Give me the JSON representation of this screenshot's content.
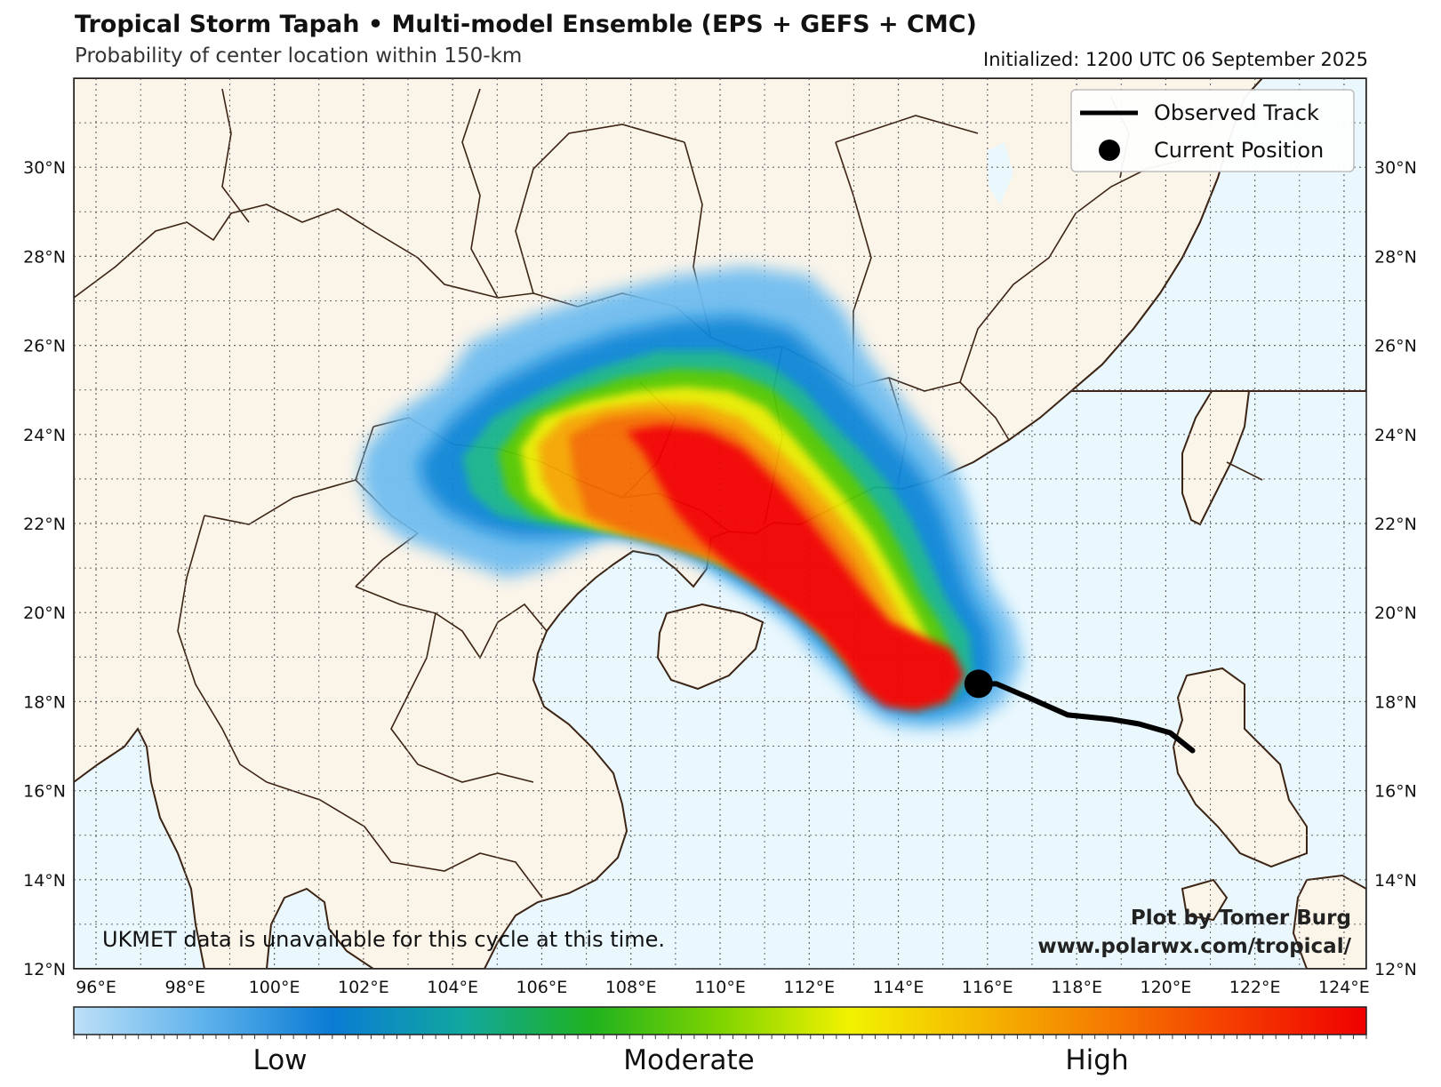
{
  "header": {
    "title": "Tropical Storm Tapah • Multi-model Ensemble (EPS + GEFS + CMC)",
    "subtitle": "Probability of center location within 150-km",
    "initialized": "Initialized: 1200 UTC 06 September 2025"
  },
  "map": {
    "lon_range": [
      95.5,
      124.5
    ],
    "lat_range": [
      12,
      32
    ],
    "lon_ticks": [
      "96°E",
      "98°E",
      "100°E",
      "102°E",
      "104°E",
      "106°E",
      "108°E",
      "110°E",
      "112°E",
      "114°E",
      "116°E",
      "118°E",
      "120°E",
      "122°E",
      "124°E"
    ],
    "lat_ticks": [
      "12°N",
      "14°N",
      "16°N",
      "18°N",
      "20°N",
      "22°N",
      "24°N",
      "26°N",
      "28°N",
      "30°N"
    ],
    "colors": {
      "land": "#fbf4e9",
      "ocean": "#eaf8fd",
      "border": "#3b2414",
      "grid": "#555555",
      "track": "#000000"
    }
  },
  "legend": {
    "observed_track": "Observed Track",
    "current_position": "Current Position"
  },
  "observed_track": [
    [
      120.6,
      16.9
    ],
    [
      120.1,
      17.3
    ],
    [
      119.4,
      17.5
    ],
    [
      118.8,
      17.6
    ],
    [
      117.8,
      17.7
    ],
    [
      116.9,
      18.1
    ],
    [
      116.2,
      18.4
    ],
    [
      115.8,
      18.4
    ]
  ],
  "current_position": [
    115.8,
    18.4
  ],
  "note": "UKMET data is unavailable for this cycle at this time.",
  "credit": {
    "line1": "Plot by Tomer Burg",
    "line2": "www.polarwx.com/tropical/"
  },
  "colorbar": {
    "labels": [
      "Low",
      "Moderate",
      "High"
    ],
    "colors": [
      "#bde0f7",
      "#5fb2ec",
      "#0a7bd4",
      "#11a7a0",
      "#1fb21f",
      "#7fd400",
      "#f2f200",
      "#f5b800",
      "#f57a00",
      "#f53a00",
      "#f00000"
    ]
  }
}
